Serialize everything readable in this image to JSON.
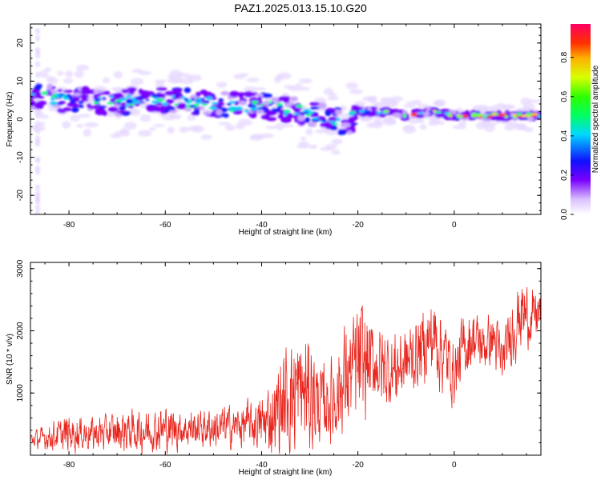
{
  "title": "PAZ1.2025.013.15.10.G20",
  "chart_data": [
    {
      "type": "heatmap",
      "description_of_axes": "spectrogram",
      "xlabel": "Height of straight line (km)",
      "ylabel": "Frequency (Hz)",
      "xlim": [
        -88,
        18
      ],
      "ylim": [
        -25,
        25
      ],
      "xticks": [
        -80,
        -60,
        -40,
        -20,
        0
      ],
      "yticks": [
        -20,
        -10,
        0,
        10,
        20
      ],
      "xtick_labels": [
        "-80",
        "-60",
        "-40",
        "-20",
        "0"
      ],
      "ytick_labels": [
        "-20",
        "-10",
        "0",
        "10",
        "20"
      ],
      "colorbar": {
        "label": "Normalized spectral amplitude",
        "range": [
          0,
          0.97
        ],
        "ticks": [
          0.0,
          0.2,
          0.4,
          0.6,
          0.8
        ],
        "tick_labels": [
          "0.0",
          "0.2",
          "0.4",
          "0.6",
          "0.8"
        ]
      },
      "ridge": {
        "x": [
          -88,
          -80,
          -70,
          -60,
          -50,
          -40,
          -35,
          -30,
          -25,
          -22,
          -20,
          -15,
          -10,
          -5,
          0,
          5,
          10,
          15,
          18
        ],
        "y": [
          6,
          5,
          4.5,
          5,
          4,
          3.5,
          2.5,
          1.5,
          0,
          -1,
          2,
          2,
          1,
          2,
          1,
          1,
          1,
          1,
          1
        ]
      }
    },
    {
      "type": "line",
      "xlabel": "Height of straight line (km)",
      "ylabel": "SNR (10 * v/v)",
      "xlim": [
        -88,
        18
      ],
      "ylim": [
        0,
        3100
      ],
      "xticks": [
        -80,
        -60,
        -40,
        -20,
        0
      ],
      "yticks": [
        1000,
        2000,
        3000
      ],
      "xtick_labels": [
        "-80",
        "-60",
        "-40",
        "-20",
        "0"
      ],
      "ytick_labels": [
        "1000",
        "2000",
        "3000"
      ],
      "line_color": "#e8261e",
      "series": [
        {
          "envelope_x": [
            -88,
            -85,
            -80,
            -75,
            -70,
            -65,
            -60,
            -55,
            -50,
            -45,
            -40,
            -38,
            -35,
            -33,
            -31,
            -29,
            -27,
            -25,
            -22,
            -20,
            -18,
            -16,
            -14,
            -12,
            -10,
            -8,
            -6,
            -4,
            -2,
            0,
            2,
            4,
            6,
            8,
            10,
            12,
            14,
            16,
            18
          ],
          "envelope_mean": [
            250,
            280,
            350,
            350,
            380,
            400,
            420,
            430,
            440,
            470,
            500,
            600,
            900,
            1000,
            1000,
            900,
            800,
            900,
            1300,
            1400,
            1500,
            1450,
            1350,
            1400,
            1500,
            1600,
            1800,
            1900,
            1600,
            1300,
            1700,
            1900,
            1750,
            1900,
            1500,
            2000,
            2300,
            2200,
            2300
          ],
          "envelope_amp": [
            150,
            200,
            350,
            300,
            350,
            400,
            400,
            350,
            350,
            400,
            500,
            700,
            1000,
            1150,
            1100,
            900,
            700,
            800,
            1000,
            1200,
            900,
            700,
            700,
            700,
            600,
            650,
            700,
            800,
            700,
            600,
            600,
            550,
            500,
            550,
            500,
            600,
            650,
            500,
            400
          ]
        }
      ]
    }
  ]
}
